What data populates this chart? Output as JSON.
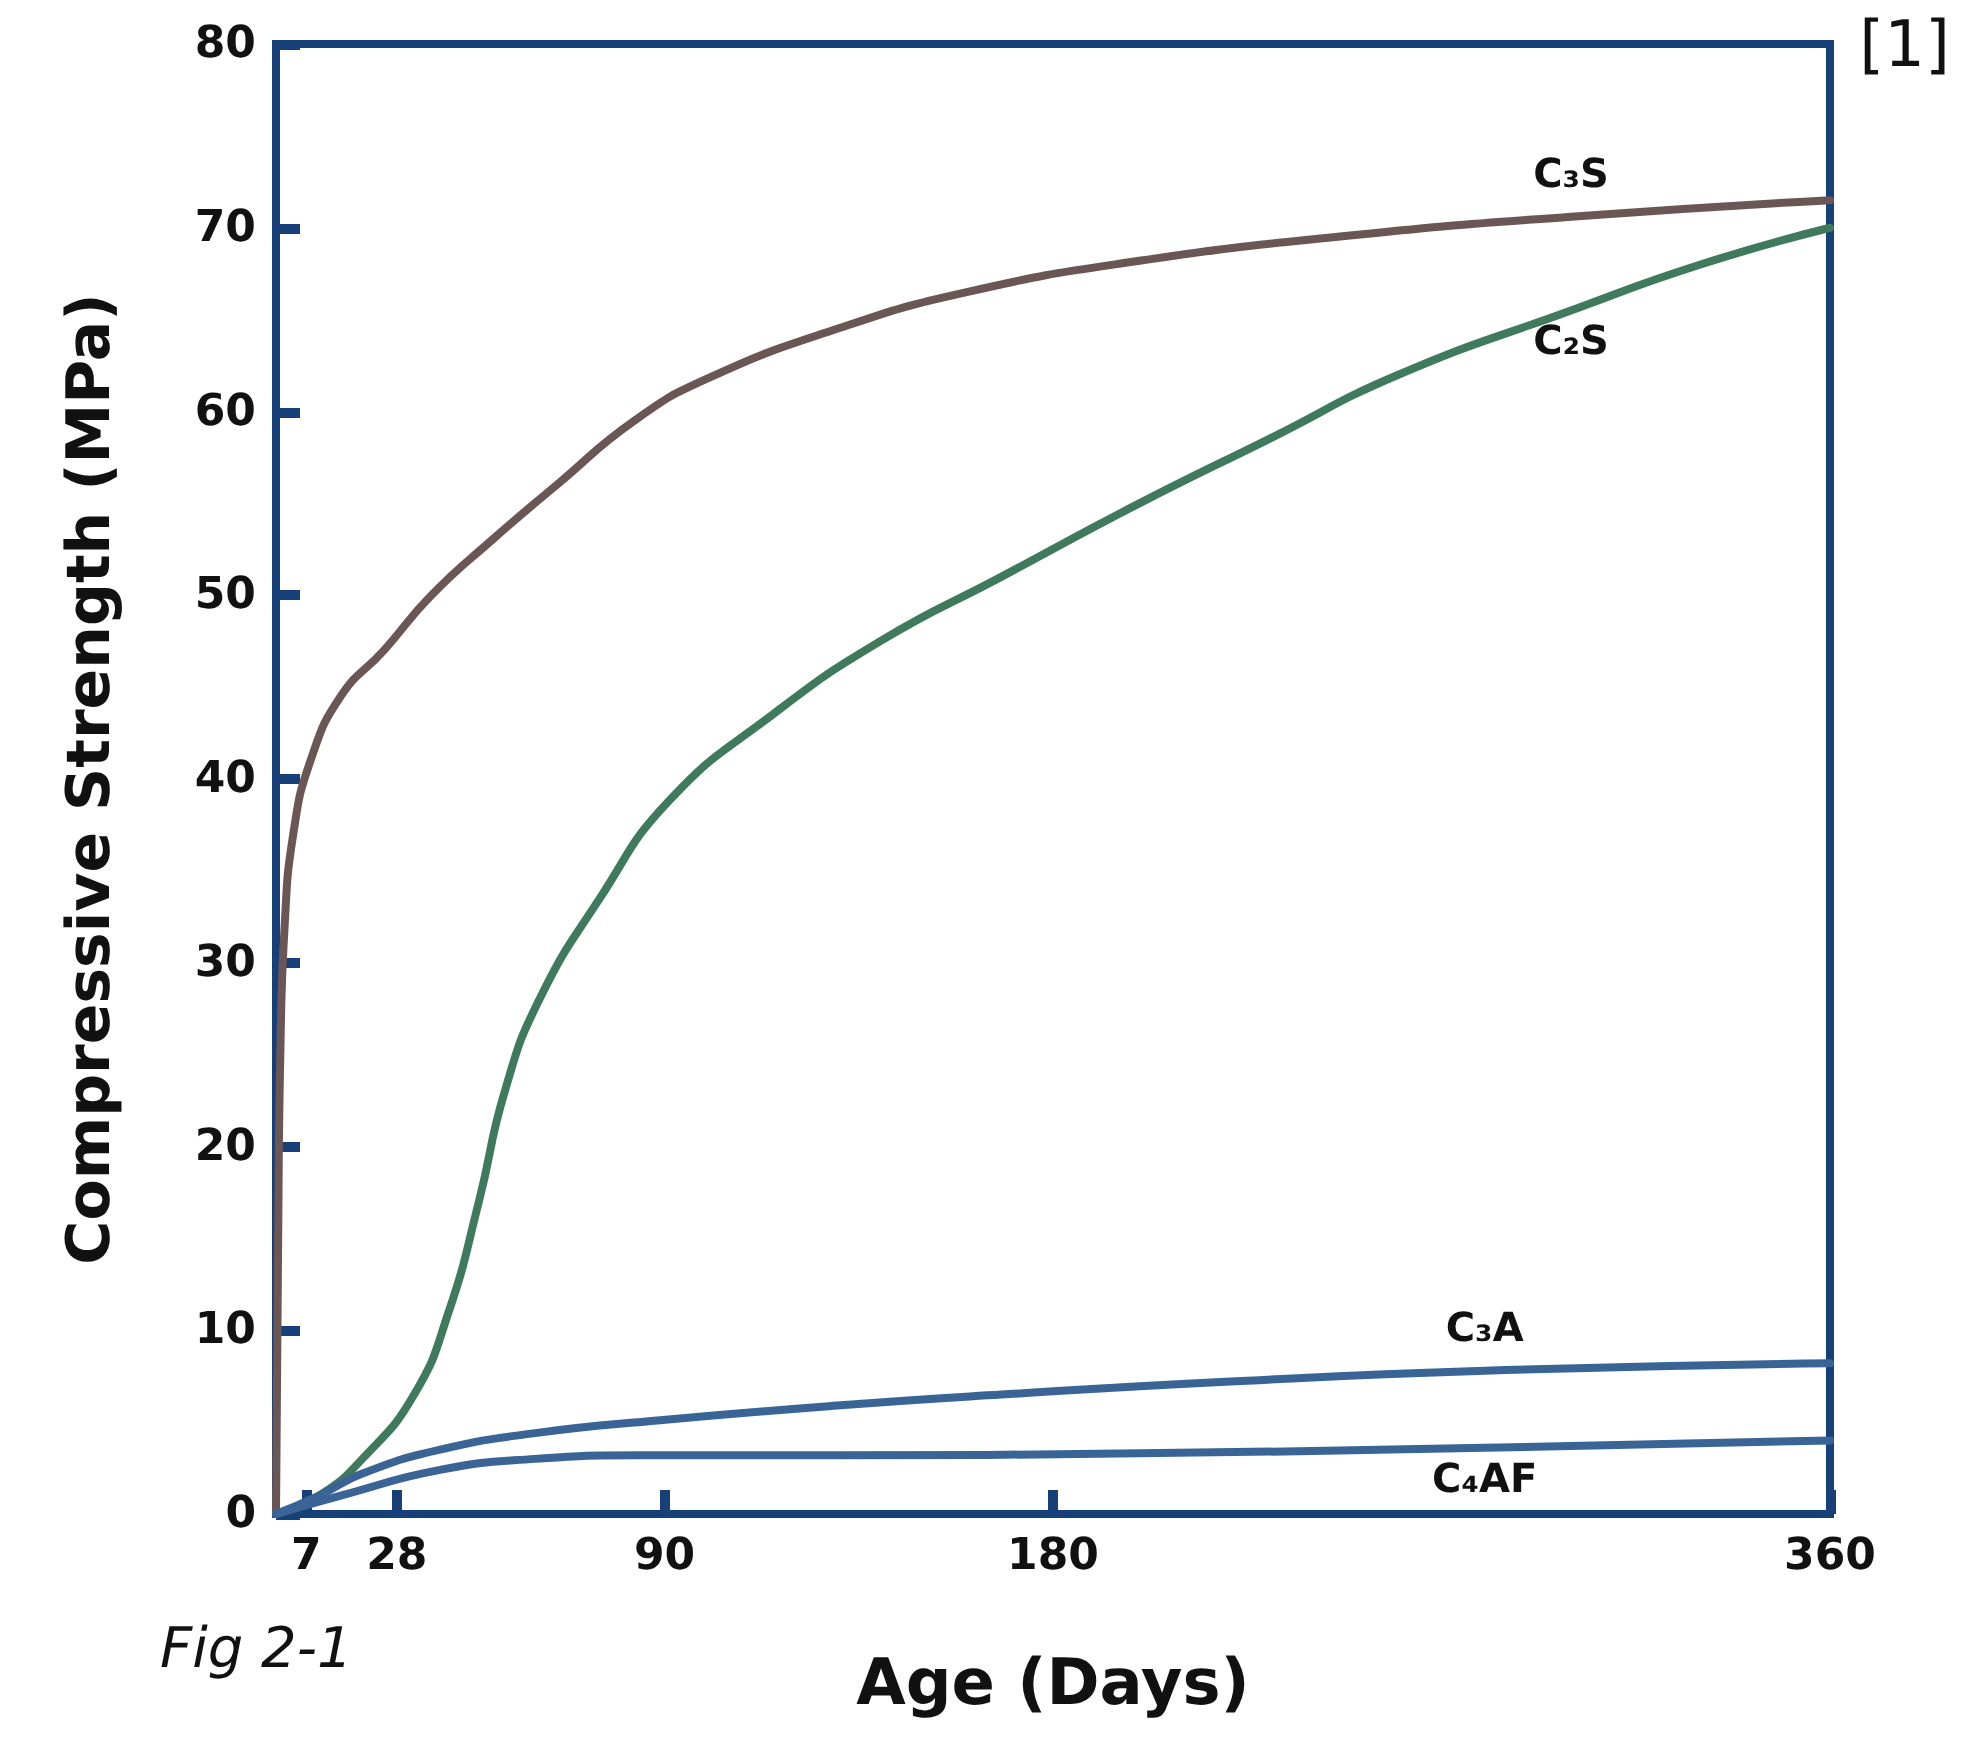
{
  "chart_data": {
    "type": "line",
    "xlabel": "Age (Days)",
    "ylabel": "Compressive Strength (MPa)",
    "annotations": [
      "[1]",
      "Fig 2-1"
    ],
    "xlim": [
      0,
      360
    ],
    "xticks": [
      7,
      28,
      90,
      180,
      360
    ],
    "ylim": [
      0,
      80
    ],
    "yticks": [
      0,
      10,
      20,
      30,
      40,
      50,
      60,
      70,
      80
    ],
    "grid": false,
    "legend": false,
    "line_style": "solid",
    "series": [
      {
        "name": "C₃S",
        "color": "#6b5656",
        "x": [
          0,
          0.5,
          1,
          2,
          4,
          8,
          15,
          25,
          36,
          50,
          65,
          83,
          100,
          130,
          160,
          200,
          250,
          300,
          360
        ],
        "values": [
          0,
          15,
          25,
          32,
          37,
          41,
          44.5,
          47,
          50,
          53,
          56,
          59.5,
          61.8,
          64.5,
          66.5,
          68.2,
          69.6,
          70.6,
          71.5
        ]
      },
      {
        "name": "C₂S",
        "color": "#3f7a5c",
        "x": [
          0,
          10,
          20,
          32,
          40,
          47,
          53,
          61,
          75,
          91,
          115,
          140,
          168,
          200,
          230,
          260,
          300,
          330,
          360
        ],
        "values": [
          0,
          1,
          3,
          6.5,
          11,
          17,
          23,
          28,
          33.5,
          38.8,
          43.5,
          47.5,
          51,
          55,
          58.5,
          62,
          65.5,
          68,
          70
        ]
      },
      {
        "name": "C₃A",
        "color": "#3a6496",
        "x": [
          0,
          10,
          20,
          38,
          60,
          89,
          130,
          168,
          220,
          280,
          360
        ],
        "values": [
          0,
          1,
          2.2,
          3.5,
          4.4,
          5.1,
          5.9,
          6.5,
          7.2,
          7.8,
          8.2
        ]
      },
      {
        "name": "C₄AF",
        "color": "#3a6496",
        "x": [
          0,
          15,
          38,
          60,
          84,
          130,
          200,
          280,
          360
        ],
        "values": [
          0,
          1,
          2.4,
          3,
          3.2,
          3.2,
          3.3,
          3.6,
          4
        ]
      }
    ]
  }
}
